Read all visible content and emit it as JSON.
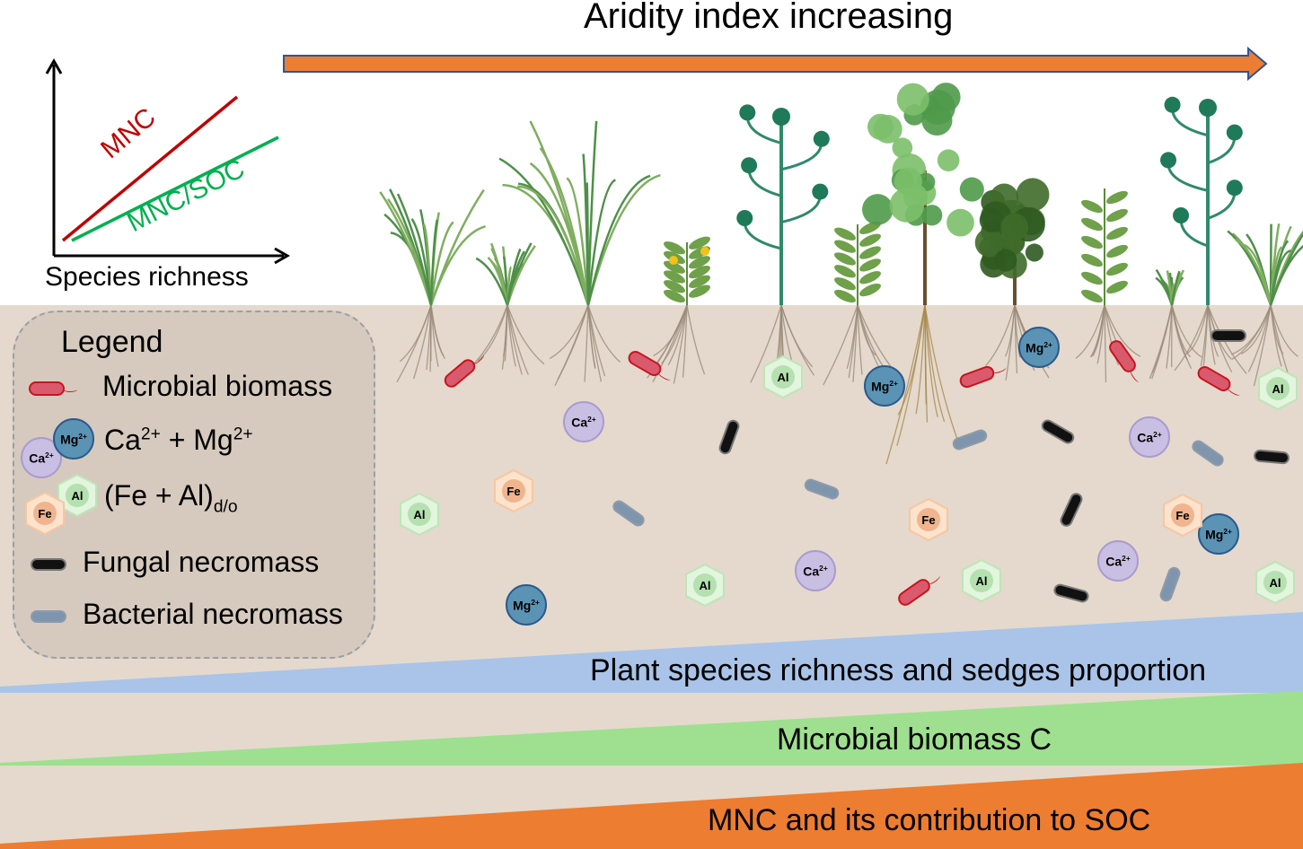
{
  "title": "Aridity index increasing",
  "inset": {
    "x_label": "Species richness",
    "line_mnc": "MNC",
    "line_mnc_soc": "MNC/SOC",
    "colors": {
      "mnc": "#c00000",
      "mnc_soc": "#00b050"
    }
  },
  "legend": {
    "title": "Legend",
    "microbial_biomass": "Microbial biomass",
    "ca": "Ca",
    "ca_sup": "2+",
    "plus": " + ",
    "mg": "Mg",
    "mg_sup": "2+",
    "fe_al": "(Fe + Al)",
    "fe_al_sub": "d/o",
    "fungal": "Fungal necromass",
    "bacterial": "Bacterial necromass"
  },
  "ions": {
    "ca": "Ca2+",
    "mg": "Mg2+",
    "al": "Al",
    "fe": "Fe"
  },
  "wedges": {
    "plant": "Plant species richness and sedges proportion",
    "microbial": "Microbial biomass C",
    "mnc": "MNC and its contribution to SOC"
  },
  "colors": {
    "arrow": "#ed7d31",
    "soil": "#e4d9cc",
    "plant_wedge": "#a9c4e8",
    "microbial_wedge": "#9ee08f",
    "mnc_wedge": "#ed7d31"
  }
}
